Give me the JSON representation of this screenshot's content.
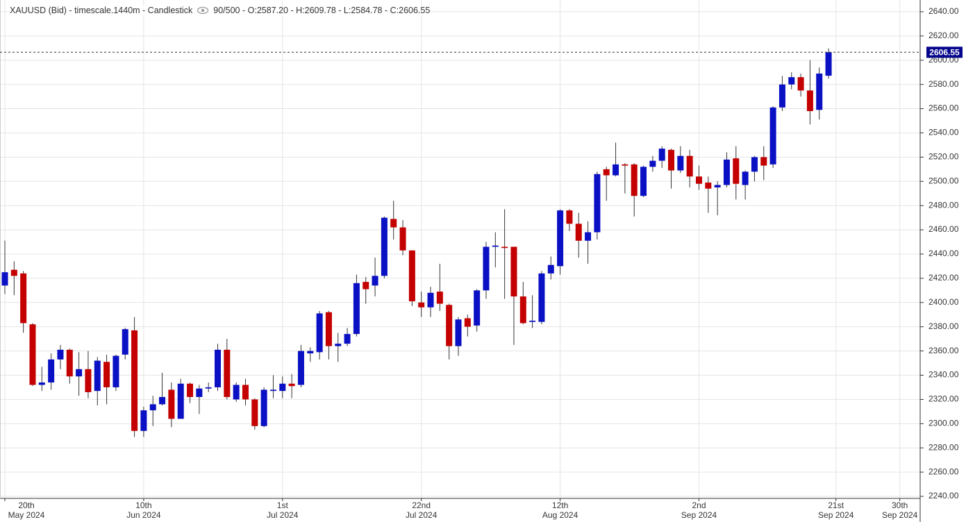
{
  "chart_data": {
    "type": "candlestick",
    "title": "XAUUSD (Bid) - timescale.1440m - Candlestick",
    "header_info": "90/500 - O:2587.20 - H:2609.78 - L:2584.78 - C:2606.55",
    "up_color": "#0a10c4",
    "down_color": "#c40000",
    "grid": true,
    "open": [
      2414,
      2427,
      2424,
      2382,
      2332,
      2334,
      2353,
      2361,
      2339,
      2345,
      2327,
      2351,
      2330,
      2357,
      2377,
      2294,
      2311,
      2316,
      2328,
      2304,
      2333,
      2322,
      2329,
      2330,
      2361,
      2320,
      2332,
      2320,
      2298,
      2327,
      2327,
      2333,
      2332,
      2358,
      2359,
      2392,
      2364,
      2366,
      2374,
      2417,
      2414,
      2422,
      2469,
      2462,
      2443,
      2400,
      2396,
      2409,
      2398,
      2364,
      2387,
      2381,
      2410,
      2446,
      2446,
      2446,
      2405,
      2384,
      2384,
      2424,
      2430,
      2476,
      2465,
      2451,
      2458,
      2510,
      2505,
      2514,
      2514,
      2488,
      2512,
      2517,
      2526,
      2509,
      2521,
      2504,
      2499,
      2495,
      2497,
      2519,
      2497,
      2508,
      2520,
      2514,
      2561,
      2580,
      2586,
      2575,
      2559,
      2587.2
    ],
    "high": [
      2451,
      2434,
      2426,
      2383,
      2347,
      2358,
      2365,
      2362,
      2359,
      2360,
      2355,
      2357,
      2357,
      2379,
      2388,
      2314,
      2323,
      2342,
      2334,
      2337,
      2334,
      2332,
      2334,
      2366,
      2370,
      2334,
      2337,
      2321,
      2330,
      2340,
      2339,
      2341,
      2365,
      2363,
      2393,
      2393,
      2375,
      2379,
      2423,
      2421,
      2437,
      2471,
      2484,
      2468,
      2443,
      2409,
      2413,
      2432,
      2399,
      2388,
      2390,
      2411,
      2450,
      2458,
      2477,
      2446,
      2417,
      2406,
      2426,
      2438,
      2477,
      2477,
      2474,
      2467,
      2508,
      2512,
      2532,
      2515,
      2515,
      2513,
      2521,
      2529,
      2527,
      2529,
      2526,
      2513,
      2504,
      2500,
      2524,
      2529,
      2509,
      2521,
      2529,
      2562,
      2587,
      2590,
      2589,
      2600,
      2594,
      2609.78
    ],
    "low": [
      2407,
      2406,
      2375,
      2331,
      2327,
      2328,
      2345,
      2333,
      2323,
      2321,
      2315,
      2316,
      2327,
      2353,
      2289,
      2289,
      2298,
      2315,
      2297,
      2304,
      2317,
      2308,
      2326,
      2327,
      2320,
      2318,
      2315,
      2295,
      2297,
      2321,
      2321,
      2321,
      2330,
      2351,
      2353,
      2353,
      2351,
      2364,
      2372,
      2399,
      2405,
      2420,
      2452,
      2439,
      2397,
      2388,
      2388,
      2393,
      2353,
      2356,
      2372,
      2376,
      2403,
      2429,
      2403,
      2365,
      2382,
      2379,
      2382,
      2419,
      2423,
      2459,
      2437,
      2432,
      2452,
      2484,
      2504,
      2490,
      2471,
      2487,
      2508,
      2511,
      2494,
      2507,
      2495,
      2493,
      2474,
      2472,
      2495,
      2485,
      2485,
      2500,
      2501,
      2511,
      2558,
      2576,
      2570,
      2547,
      2551,
      2584.78
    ],
    "close": [
      2425,
      2422,
      2383,
      2332,
      2334,
      2353,
      2361,
      2339,
      2345,
      2326,
      2352,
      2330,
      2356,
      2378,
      2294,
      2311,
      2316,
      2322,
      2304,
      2333,
      2322,
      2329,
      2330,
      2361,
      2322,
      2332,
      2320,
      2298,
      2328,
      2328,
      2333,
      2331,
      2360,
      2360,
      2391,
      2364,
      2366,
      2374,
      2416,
      2411,
      2422,
      2470,
      2462,
      2443,
      2401,
      2396,
      2408,
      2399,
      2364,
      2386,
      2380,
      2410,
      2446,
      2447,
      2445,
      2405,
      2383,
      2385,
      2424,
      2431,
      2476,
      2465,
      2451,
      2458,
      2506,
      2505,
      2514,
      2513,
      2488,
      2512,
      2517,
      2527,
      2509,
      2521,
      2504,
      2498,
      2494,
      2497,
      2518,
      2498,
      2508,
      2520,
      2513,
      2561,
      2580,
      2586,
      2575,
      2558,
      2589,
      2606.55
    ],
    "last_price": 2606.55,
    "xlim": [
      -0.525,
      98.9
    ],
    "xticks": [
      {
        "value": 0,
        "label": "20th\nMay 2024"
      },
      {
        "value": 15,
        "label": "10th\nJun 2024"
      },
      {
        "value": 30,
        "label": "1st\nJul 2024"
      },
      {
        "value": 45,
        "label": "22nd\nJul 2024"
      },
      {
        "value": 60,
        "label": "12th\nAug 2024"
      },
      {
        "value": 75,
        "label": "2nd\nSep 2024"
      },
      {
        "value": 89.8,
        "label": "21st\nSep 2024"
      },
      {
        "value": 96.7,
        "label": "30th\nSep 2024"
      }
    ],
    "ylim": [
      2238.3,
      2649.7
    ],
    "yticks": [
      {
        "value": 2240,
        "label": "2240.00"
      },
      {
        "value": 2260,
        "label": "2260.00"
      },
      {
        "value": 2280,
        "label": "2280.00"
      },
      {
        "value": 2300,
        "label": "2300.00"
      },
      {
        "value": 2320,
        "label": "2320.00"
      },
      {
        "value": 2340,
        "label": "2340.00"
      },
      {
        "value": 2360,
        "label": "2360.00"
      },
      {
        "value": 2380,
        "label": "2380.00"
      },
      {
        "value": 2400,
        "label": "2400.00"
      },
      {
        "value": 2420,
        "label": "2420.00"
      },
      {
        "value": 2440,
        "label": "2440.00"
      },
      {
        "value": 2460,
        "label": "2460.00"
      },
      {
        "value": 2480,
        "label": "2480.00"
      },
      {
        "value": 2500,
        "label": "2500.00"
      },
      {
        "value": 2520,
        "label": "2520.00"
      },
      {
        "value": 2540,
        "label": "2540.00"
      },
      {
        "value": 2560,
        "label": "2560.00"
      },
      {
        "value": 2580,
        "label": "2580.00"
      },
      {
        "value": 2600,
        "label": "2600.00"
      },
      {
        "value": 2620,
        "label": "2620.00"
      },
      {
        "value": 2640,
        "label": "2640.00"
      }
    ]
  }
}
